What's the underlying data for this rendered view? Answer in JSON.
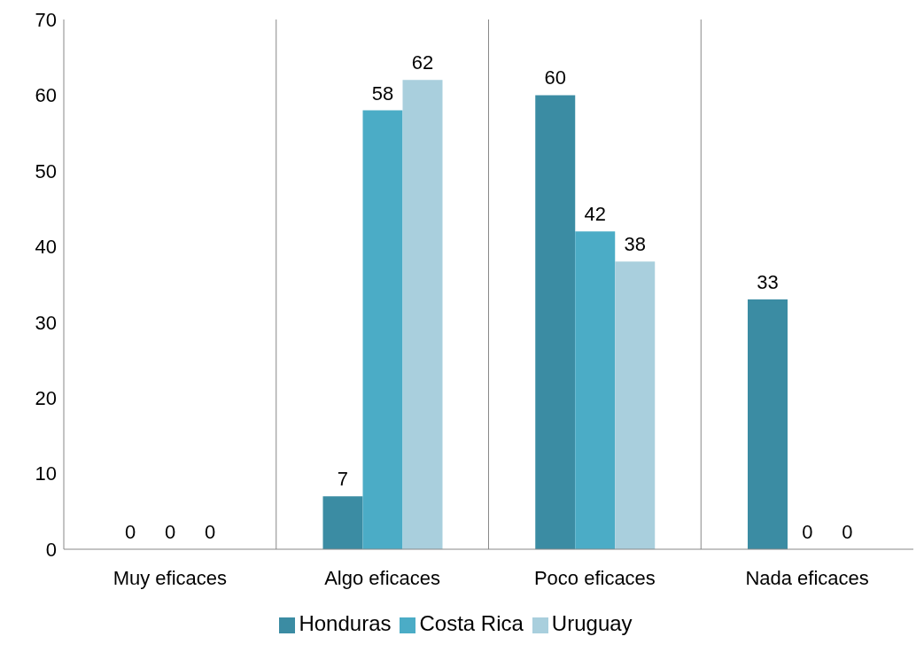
{
  "chart_data": {
    "type": "bar",
    "categories": [
      "Muy eficaces",
      "Algo eficaces",
      "Poco eficaces",
      "Nada eficaces"
    ],
    "series": [
      {
        "name": "Honduras",
        "color": "#3b8ca3",
        "values": [
          0,
          7,
          60,
          33
        ]
      },
      {
        "name": "Costa Rica",
        "color": "#4bacc6",
        "values": [
          0,
          58,
          42,
          0
        ]
      },
      {
        "name": "Uruguay",
        "color": "#a9cfdd",
        "values": [
          0,
          62,
          38,
          0
        ]
      }
    ],
    "ylim": [
      0,
      70
    ],
    "yticks": [
      0,
      10,
      20,
      30,
      40,
      50,
      60,
      70
    ],
    "grid": "x",
    "legend": "bottom",
    "data_labels": true
  }
}
